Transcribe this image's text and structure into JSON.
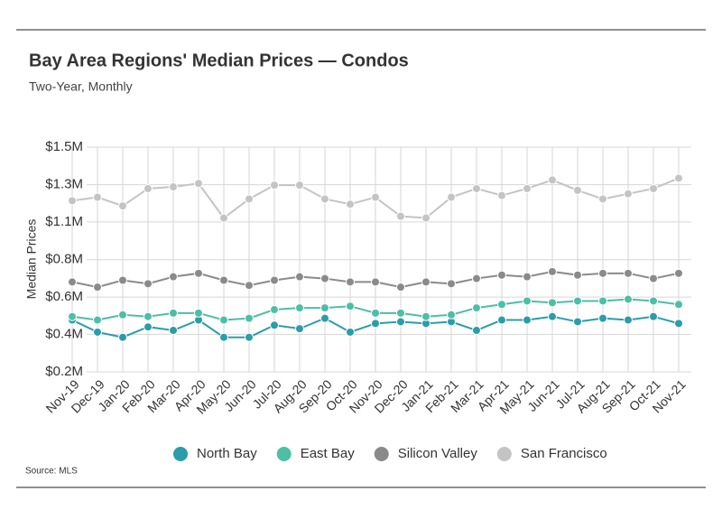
{
  "chart_data": {
    "type": "line",
    "title": "Bay Area Regions' Median Prices — Condos",
    "subtitle": "Two-Year, Monthly",
    "y_label": "Median Prices",
    "source": "Source:  MLS",
    "categories": [
      "Nov-19",
      "Dec-19",
      "Jan-20",
      "Feb-20",
      "Mar-20",
      "Apr-20",
      "May-20",
      "Jun-20",
      "Jul-20",
      "Aug-20",
      "Sep-20",
      "Oct-20",
      "Nov-20",
      "Dec-20",
      "Jan-21",
      "Feb-21",
      "Mar-21",
      "Apr-21",
      "May-21",
      "Jun-21",
      "Jul-21",
      "Aug-21",
      "Sep-21",
      "Oct-21",
      "Nov-21"
    ],
    "series": [
      {
        "name": "North Bay",
        "color": "#2b9daa",
        "values": [
          0.5,
          0.43,
          0.4,
          0.46,
          0.44,
          0.5,
          0.4,
          0.4,
          0.47,
          0.45,
          0.51,
          0.43,
          0.48,
          0.49,
          0.48,
          0.49,
          0.44,
          0.5,
          0.5,
          0.52,
          0.49,
          0.51,
          0.5,
          0.52,
          0.48
        ]
      },
      {
        "name": "East Bay",
        "color": "#4dbfa5",
        "values": [
          0.52,
          0.5,
          0.53,
          0.52,
          0.54,
          0.54,
          0.5,
          0.51,
          0.56,
          0.57,
          0.57,
          0.58,
          0.54,
          0.54,
          0.52,
          0.53,
          0.57,
          0.59,
          0.61,
          0.6,
          0.61,
          0.61,
          0.62,
          0.61,
          0.59
        ]
      },
      {
        "name": "Silicon Valley",
        "color": "#8a8a8a",
        "values": [
          0.72,
          0.69,
          0.73,
          0.71,
          0.75,
          0.77,
          0.73,
          0.7,
          0.73,
          0.75,
          0.74,
          0.72,
          0.72,
          0.69,
          0.72,
          0.71,
          0.74,
          0.76,
          0.75,
          0.78,
          0.76,
          0.77,
          0.77,
          0.74,
          0.77
        ]
      },
      {
        "name": "San Francisco",
        "color": "#c4c4c4",
        "values": [
          1.19,
          1.21,
          1.16,
          1.26,
          1.27,
          1.29,
          1.09,
          1.2,
          1.28,
          1.28,
          1.2,
          1.17,
          1.21,
          1.1,
          1.09,
          1.21,
          1.26,
          1.22,
          1.26,
          1.31,
          1.25,
          1.2,
          1.23,
          1.26,
          1.32
        ]
      }
    ],
    "ylim": [
      0.2,
      1.5
    ],
    "yticks": [
      {
        "value": 0.2,
        "label": "$0.2M"
      },
      {
        "value": 0.417,
        "label": "$0.4M"
      },
      {
        "value": 0.633,
        "label": "$0.6M"
      },
      {
        "value": 0.849,
        "label": "$0.8M"
      },
      {
        "value": 1.067,
        "label": "$1.1M"
      },
      {
        "value": 1.283,
        "label": "$1.3M"
      },
      {
        "value": 1.5,
        "label": "$1.5M"
      }
    ],
    "grid": true,
    "legend": "bottom"
  }
}
